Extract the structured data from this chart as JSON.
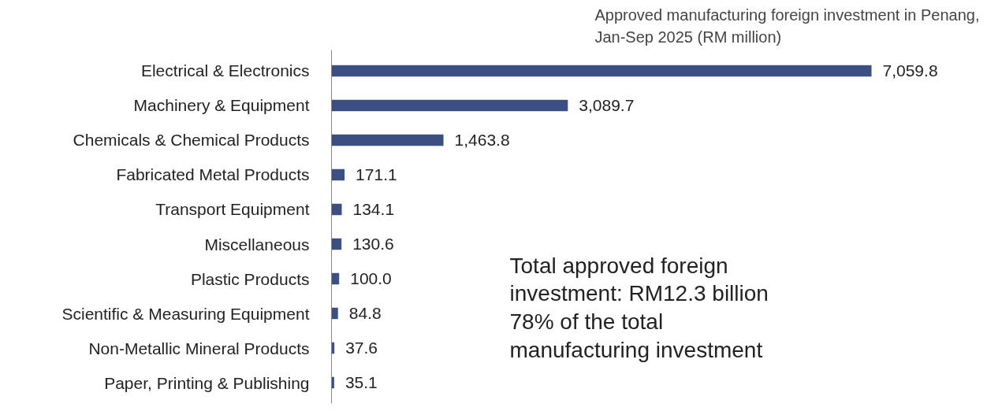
{
  "chart_data": {
    "type": "bar",
    "orientation": "horizontal",
    "title": "Approved manufacturing foreign investment in Penang, Jan-Sep 2025 (RM million)",
    "categories": [
      "Electrical & Electronics",
      "Machinery & Equipment",
      "Chemicals & Chemical Products",
      "Fabricated Metal Products",
      "Transport Equipment",
      "Miscellaneous",
      "Plastic Products",
      "Scientific & Measuring Equipment",
      "Non-Metallic Mineral Products",
      "Paper, Printing & Publishing"
    ],
    "values": [
      7059.8,
      3089.7,
      1463.8,
      171.1,
      134.1,
      130.6,
      100.0,
      84.8,
      37.6,
      35.1
    ],
    "value_labels": [
      "7,059.8",
      "3,089.7",
      "1,463.8",
      "171.1",
      "134.1",
      "130.6",
      "100.0",
      "84.8",
      "37.6",
      "35.1"
    ],
    "color": "#3b4f82",
    "annotations": [
      "Total approved foreign investment: RM12.3 billion 78% of the total manufacturing investment"
    ],
    "grid": false
  }
}
